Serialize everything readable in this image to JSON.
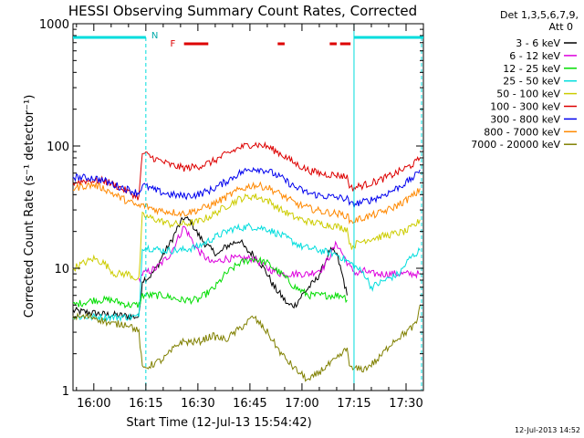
{
  "chart_data": {
    "type": "line",
    "title": "HESSI Observing Summary Count Rates, Corrected",
    "xlabel": "Start Time (12-Jul-13 15:54:42)",
    "ylabel": "Corrected Count Rate (s⁻¹ detector⁻¹)",
    "y_scale": "log",
    "ylim": [
      1,
      1000
    ],
    "xlim_minutes": [
      -6,
      95
    ],
    "x_ticks": [
      {
        "label": "16:00",
        "min": 0
      },
      {
        "label": "16:15",
        "min": 15
      },
      {
        "label": "16:30",
        "min": 30
      },
      {
        "label": "16:45",
        "min": 45
      },
      {
        "label": "17:00",
        "min": 60
      },
      {
        "label": "17:15",
        "min": 75
      },
      {
        "label": "17:30",
        "min": 90
      }
    ],
    "y_ticks": [
      {
        "label": "1",
        "value": 1
      },
      {
        "label": "10",
        "value": 10
      },
      {
        "label": "100",
        "value": 100
      },
      {
        "label": "1000",
        "value": 1000
      }
    ],
    "legend_header": [
      "Det 1,3,5,6,7,9,",
      "Att 0"
    ],
    "legend_position": "right",
    "annotations": {
      "night_flag": "N",
      "flare_flag": "F"
    },
    "series": [
      {
        "name": "3 - 6 keV",
        "color": "#000000",
        "x": [
          -6,
          3,
          13,
          14,
          16,
          18,
          20,
          22,
          24,
          26,
          28,
          30,
          32,
          34,
          36,
          38,
          40,
          42,
          44,
          46,
          48,
          50,
          52,
          54,
          56,
          58,
          60,
          62,
          64,
          66,
          68,
          70,
          72,
          73
        ],
        "values": [
          4.5,
          4.2,
          4.0,
          8,
          8.5,
          10,
          13,
          16,
          21,
          26,
          24,
          19,
          16,
          14,
          13,
          15,
          16,
          17,
          14,
          13,
          11,
          9,
          7,
          6,
          5,
          5,
          6,
          7,
          8,
          10,
          14,
          13,
          8,
          6
        ]
      },
      {
        "name": "6 - 12 keV",
        "color": "#dd00dd",
        "x": [
          13,
          14,
          18,
          22,
          26,
          30,
          34,
          38,
          42,
          46,
          50,
          54,
          58,
          62,
          66,
          70,
          74,
          76,
          78,
          80,
          82,
          84,
          86,
          88,
          90,
          92,
          94
        ],
        "values": [
          8,
          9,
          10,
          13,
          22,
          14,
          11,
          12,
          12,
          12,
          10,
          9,
          9,
          9,
          10,
          16,
          10,
          9,
          9.5,
          9,
          9,
          9,
          9,
          9,
          9,
          9,
          9
        ]
      },
      {
        "name": "12 - 25 keV",
        "color": "#00dd00",
        "x": [
          -6,
          0,
          5,
          10,
          13,
          14,
          20,
          25,
          30,
          35,
          38,
          42,
          46,
          50,
          54,
          58,
          62,
          66,
          70,
          72,
          73
        ],
        "values": [
          5,
          5.5,
          5.5,
          5,
          5,
          6,
          6,
          5.5,
          5.5,
          7,
          9,
          11,
          12,
          11,
          9,
          7,
          6,
          6,
          6,
          6,
          5.5
        ]
      },
      {
        "name": "25 - 50 keV",
        "color": "#00dddd",
        "x": [
          -6,
          0,
          5,
          10,
          13,
          14,
          20,
          25,
          30,
          35,
          40,
          45,
          50,
          55,
          60,
          65,
          70,
          74,
          78,
          80,
          84,
          88,
          91,
          94
        ],
        "values": [
          4,
          4,
          4,
          4,
          4,
          15,
          14,
          14,
          15,
          18,
          21,
          22,
          21,
          18,
          15,
          14,
          13,
          11,
          9,
          7,
          8,
          9,
          12,
          14
        ]
      },
      {
        "name": "50 - 100 keV",
        "color": "#cccc00",
        "x": [
          -6,
          -3,
          0,
          3,
          6,
          10,
          13,
          14,
          18,
          22,
          26,
          30,
          34,
          38,
          42,
          46,
          50,
          54,
          58,
          62,
          66,
          70,
          73,
          74,
          78,
          82,
          86,
          90,
          93,
          94
        ],
        "values": [
          10,
          11,
          12,
          11,
          9,
          9,
          8,
          27,
          25,
          23,
          23,
          24,
          27,
          32,
          37,
          39,
          36,
          30,
          26,
          24,
          23,
          22,
          21,
          15,
          17,
          18,
          19,
          20,
          23,
          25
        ]
      },
      {
        "name": "100 - 300 keV",
        "color": "#dd0000",
        "x": [
          -6,
          -3,
          0,
          3,
          6,
          10,
          13,
          14,
          18,
          22,
          26,
          30,
          34,
          38,
          42,
          46,
          50,
          54,
          58,
          62,
          66,
          70,
          73,
          74,
          78,
          82,
          86,
          90,
          93,
          94
        ],
        "values": [
          50,
          52,
          52,
          52,
          48,
          42,
          38,
          88,
          78,
          70,
          66,
          68,
          74,
          85,
          97,
          104,
          99,
          86,
          72,
          63,
          59,
          58,
          56,
          45,
          48,
          52,
          58,
          66,
          74,
          80
        ]
      },
      {
        "name": "300 - 800 keV",
        "color": "#0000ee",
        "x": [
          -6,
          -3,
          0,
          3,
          6,
          10,
          13,
          14,
          18,
          22,
          26,
          30,
          34,
          38,
          42,
          46,
          50,
          54,
          58,
          62,
          66,
          70,
          73,
          74,
          78,
          82,
          86,
          90,
          93,
          94
        ],
        "values": [
          56,
          55,
          55,
          52,
          48,
          44,
          41,
          48,
          43,
          40,
          39,
          40,
          44,
          51,
          60,
          66,
          63,
          55,
          46,
          41,
          39,
          38,
          37,
          33,
          35,
          38,
          43,
          50,
          58,
          64
        ]
      },
      {
        "name": "800 - 7000 keV",
        "color": "#ff8800",
        "x": [
          -6,
          -3,
          0,
          3,
          6,
          10,
          13,
          14,
          18,
          22,
          26,
          30,
          34,
          38,
          42,
          46,
          50,
          54,
          58,
          62,
          66,
          70,
          73,
          74,
          78,
          82,
          86,
          90,
          93,
          94
        ],
        "values": [
          45,
          47,
          48,
          45,
          40,
          35,
          32,
          33,
          30,
          29,
          28,
          30,
          33,
          38,
          44,
          48,
          46,
          40,
          34,
          31,
          29,
          28,
          27,
          24,
          26,
          28,
          31,
          36,
          41,
          45
        ]
      },
      {
        "name": "7000 - 20000 keV",
        "color": "#808000",
        "x": [
          -6,
          0,
          5,
          10,
          13,
          14,
          20,
          25,
          30,
          34,
          38,
          42,
          46,
          50,
          54,
          58,
          62,
          66,
          70,
          73,
          74,
          78,
          82,
          86,
          90,
          93,
          94
        ],
        "values": [
          4,
          4,
          3.5,
          3.5,
          3,
          1.5,
          1.8,
          2.5,
          2.5,
          2.8,
          2.6,
          3.2,
          4,
          3,
          2,
          1.5,
          1.2,
          1.5,
          1.8,
          2.2,
          1.5,
          1.5,
          1.8,
          2.5,
          3,
          3.5,
          5
        ]
      }
    ]
  },
  "footer": {
    "date_stamp": "12-Jul-2013 14:52"
  }
}
